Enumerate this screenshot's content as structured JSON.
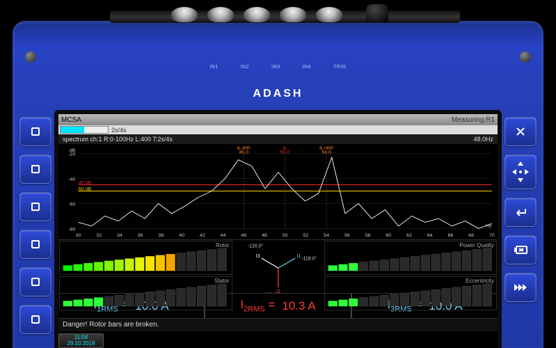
{
  "device": {
    "brand": "ADASH",
    "ports": [
      "IN1",
      "IN2",
      "IN3",
      "IN4",
      "TRIG"
    ]
  },
  "screen": {
    "title": "MCSA",
    "status": "Measuring:R1",
    "progress": {
      "label": "2s/4s",
      "percent": 50
    },
    "spectrum_info": "spectrum ch:1 R:0-100Hz L:400 T:2s/4s",
    "freq_readout": "48.0Hz",
    "peaks": [
      {
        "label": "fL-fPP",
        "freq": 46.0,
        "db": -25,
        "color": "#ff8c1a"
      },
      {
        "label": "fL",
        "freq": 50.0,
        "db": -4,
        "color": "#ff2a2a"
      },
      {
        "label": "fL+fPP",
        "freq": 54.0,
        "db": -23,
        "color": "#ff8c1a"
      }
    ],
    "noise_floor": [
      -75,
      -78,
      -70,
      -74,
      -66,
      -72,
      -60,
      -68,
      -62,
      -55,
      -50,
      -40,
      -45,
      -30,
      -48,
      -35,
      -48,
      -58,
      -52,
      -63,
      -68,
      -60,
      -72,
      -65,
      -78,
      -70,
      -75,
      -72,
      -78,
      -74,
      -80,
      -76
    ],
    "thresholds": [
      {
        "db": -45,
        "color": "#ff2a2a",
        "label": "-45 dB"
      },
      {
        "db": -50,
        "color": "#ffd400",
        "label": "-50 dB"
      }
    ],
    "yaxis": {
      "min": -80,
      "max": -20,
      "step": 20,
      "label": "dB"
    },
    "xaxis": {
      "min": 30,
      "max": 70,
      "step": 2,
      "label": "Hz"
    },
    "gauges": {
      "rotor": {
        "label": "Rotor",
        "bars": 16,
        "lit": 11,
        "scheme": "rainbow"
      },
      "stator": {
        "label": "Stator",
        "bars": 16,
        "lit": 4,
        "scheme": "green"
      },
      "power": {
        "label": "Power Quality",
        "bars": 16,
        "lit": 3,
        "scheme": "green"
      },
      "eccentricity": {
        "label": "Eccentricity",
        "bars": 16,
        "lit": 3,
        "scheme": "green"
      }
    },
    "vectors": {
      "I1": {
        "angle": -30,
        "label": "-118.0°",
        "color": "#6fd0ff"
      },
      "I2": {
        "angle": 90,
        "label": "-122.0°",
        "color": "#ff4a4a"
      },
      "I3": {
        "angle": 210,
        "label": "-120.0°",
        "color": "#fff"
      }
    },
    "rms": [
      {
        "name": "I",
        "sub": "1RMS",
        "value": "10.0 A",
        "color": "#6fd0ff"
      },
      {
        "name": "I",
        "sub": "2RMS",
        "value": "10.3 A",
        "color": "#ff3a3a"
      },
      {
        "name": "I",
        "sub": "3RMS",
        "value": "10.0 A",
        "color": "#6fd0ff"
      }
    ],
    "warning": "Danger! Rotor bars are broken.",
    "footer": {
      "time": "11:04",
      "date": "29.10.2019"
    }
  },
  "chart_colors": {
    "bg": "#000",
    "trace": "#e8e8e8",
    "grid": "#2a2a2a",
    "axis_text": "#c8c8c8",
    "peak_dash": "#cc4444"
  }
}
